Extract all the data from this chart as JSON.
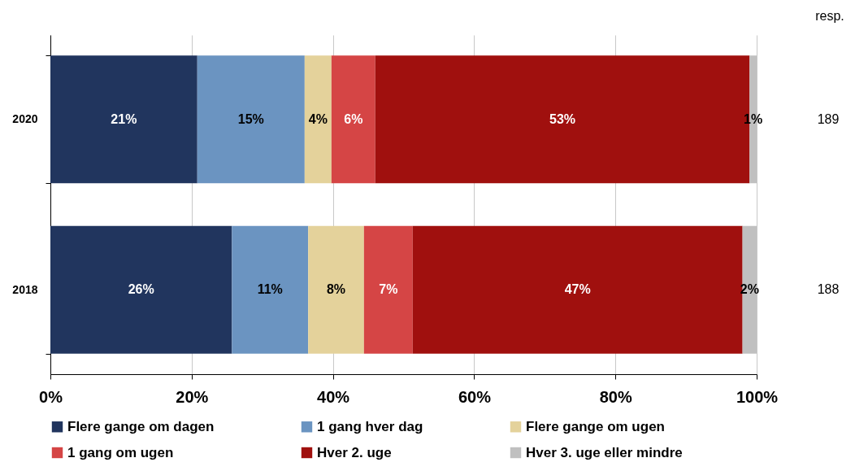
{
  "chart_data": {
    "type": "bar",
    "orientation": "horizontal",
    "stacked": true,
    "categories": [
      "2020",
      "2018"
    ],
    "series": [
      {
        "name": "Flere gange om dagen",
        "color": "#21355e",
        "values": [
          20.8,
          25.7
        ],
        "value_labels": [
          "21%",
          "26%"
        ]
      },
      {
        "name": "1 gang hver dag",
        "color": "#6b94c1",
        "values": [
          15.2,
          10.8
        ],
        "value_labels": [
          "15%",
          "11%"
        ]
      },
      {
        "name": "Flere gange om ugen",
        "color": "#e4d29b",
        "values": [
          3.8,
          7.9
        ],
        "value_labels": [
          "4%",
          "8%"
        ]
      },
      {
        "name": "1 gang om ugen",
        "color": "#d54545",
        "values": [
          6.2,
          6.9
        ],
        "value_labels": [
          "6%",
          "7%"
        ]
      },
      {
        "name": "Hver 2. uge",
        "color": "#a0100e",
        "values": [
          53.0,
          46.7
        ],
        "value_labels": [
          "53%",
          "47%"
        ]
      },
      {
        "name": "Hver 3. uge eller mindre",
        "color": "#c0c0c0",
        "values": [
          1.0,
          2.0
        ],
        "value_labels": [
          "1%",
          "2%"
        ]
      }
    ],
    "xlim": [
      0,
      100
    ],
    "xticks": [
      {
        "value": 0,
        "label": "0%"
      },
      {
        "value": 20,
        "label": "20%"
      },
      {
        "value": 40,
        "label": "40%"
      },
      {
        "value": 60,
        "label": "60%"
      },
      {
        "value": 80,
        "label": "80%"
      },
      {
        "value": 100,
        "label": "100%"
      }
    ],
    "grid": "x",
    "legend": "bottom",
    "annotations": [
      "resp.",
      "189",
      "188"
    ]
  }
}
